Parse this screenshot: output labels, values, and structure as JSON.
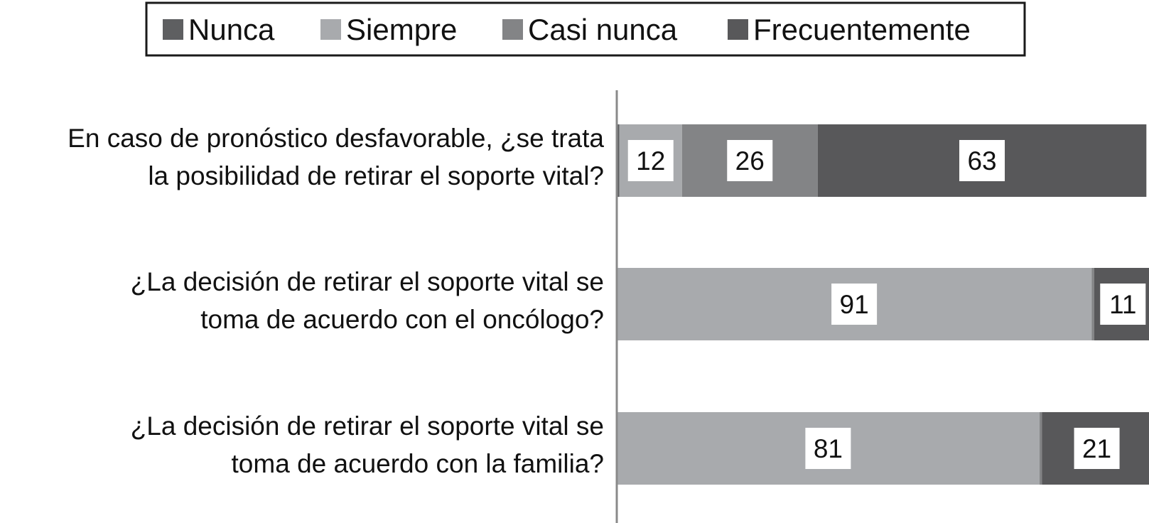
{
  "chart_data": {
    "type": "bar",
    "orientation": "horizontal",
    "stacked": true,
    "title": "",
    "xlabel": "",
    "ylabel": "",
    "xlim": [
      0,
      102
    ],
    "grid": false,
    "legend_position": "top",
    "categories": [
      [
        "En caso de pronóstico desfavorable, ¿se trata",
        "la posibilidad de retirar el soporte vital?"
      ],
      [
        "¿La decisión de retirar el soporte vital se",
        "toma de acuerdo con el oncólogo?"
      ],
      [
        "¿La decisión de retirar el soporte vital se",
        "toma de acuerdo con la familia?"
      ]
    ],
    "series": [
      {
        "name": "Nunca",
        "color": "#5e5f61",
        "values": [
          0.5,
          0,
          0
        ],
        "labels": [
          "",
          "",
          ""
        ]
      },
      {
        "name": "Siempre",
        "color": "#a8aaad",
        "values": [
          12,
          91,
          81
        ],
        "labels": [
          "12",
          "91",
          "81"
        ]
      },
      {
        "name": "Casi nunca",
        "color": "#838486",
        "values": [
          26,
          0.5,
          0.5
        ],
        "labels": [
          "26",
          "",
          ""
        ]
      },
      {
        "name": "Frecuentemente",
        "color": "#58585a",
        "values": [
          63,
          11,
          21
        ],
        "labels": [
          "63",
          "11",
          "21"
        ]
      }
    ]
  }
}
